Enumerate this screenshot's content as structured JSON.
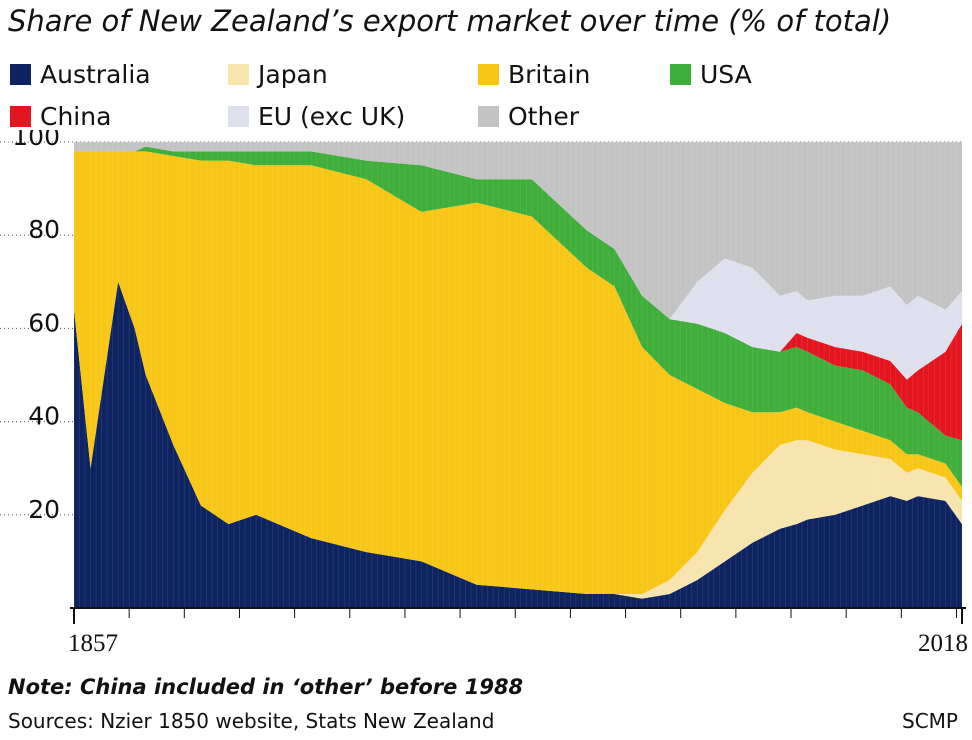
{
  "title": "Share of New Zealand’s export market over time (% of total)",
  "legend": [
    {
      "label": "Australia",
      "color": "#0d2461"
    },
    {
      "label": "Japan",
      "color": "#f7e4ae"
    },
    {
      "label": "Britain",
      "color": "#f8c616"
    },
    {
      "label": "USA",
      "color": "#3fae3a"
    },
    {
      "label": "China",
      "color": "#e3151f"
    },
    {
      "label": "EU (exc UK)",
      "color": "#dfe0ee"
    },
    {
      "label": "Other",
      "color": "#c3c3c3"
    }
  ],
  "note": "Note: China included in ‘other’ before 1988",
  "source": "Sources: Nzier 1850 website, Stats New Zealand",
  "credit": "SCMP",
  "chart_data": {
    "type": "area",
    "title": "Share of New Zealand’s export market over time (% of total)",
    "xlabel": "",
    "ylabel": "",
    "xlim": [
      1857,
      2018
    ],
    "ylim": [
      0,
      100
    ],
    "x_tick_labels": [
      "1857",
      "2018"
    ],
    "y_ticks": [
      20,
      40,
      60,
      80,
      100
    ],
    "stack_order": [
      "Australia",
      "Japan",
      "Britain",
      "USA",
      "China",
      "EU (exc UK)",
      "Other"
    ],
    "x": [
      1857,
      1860,
      1865,
      1868,
      1870,
      1875,
      1880,
      1885,
      1890,
      1900,
      1910,
      1920,
      1930,
      1940,
      1950,
      1955,
      1960,
      1965,
      1970,
      1975,
      1980,
      1985,
      1988,
      1990,
      1995,
      2000,
      2005,
      2008,
      2010,
      2015,
      2018
    ],
    "series": [
      {
        "name": "Australia",
        "values": [
          64,
          30,
          70,
          60,
          50,
          35,
          22,
          18,
          20,
          15,
          12,
          10,
          5,
          4,
          3,
          3,
          2,
          3,
          6,
          10,
          14,
          17,
          18,
          19,
          20,
          22,
          24,
          23,
          24,
          23,
          18
        ]
      },
      {
        "name": "Japan",
        "values": [
          0,
          0,
          0,
          0,
          0,
          0,
          0,
          0,
          0,
          0,
          0,
          0,
          0,
          0,
          0,
          0,
          1,
          3,
          6,
          11,
          15,
          18,
          18,
          17,
          14,
          11,
          8,
          6,
          6,
          5,
          5
        ]
      },
      {
        "name": "Britain",
        "values": [
          34,
          68,
          28,
          38,
          48,
          62,
          74,
          78,
          75,
          80,
          80,
          75,
          82,
          80,
          70,
          66,
          53,
          44,
          35,
          23,
          13,
          7,
          7,
          6,
          6,
          5,
          4,
          4,
          3,
          3,
          3
        ]
      },
      {
        "name": "USA",
        "values": [
          0,
          0,
          0,
          0,
          1,
          1,
          2,
          2,
          3,
          3,
          4,
          10,
          5,
          8,
          8,
          8,
          11,
          12,
          14,
          15,
          14,
          13,
          13,
          13,
          12,
          13,
          12,
          10,
          9,
          6,
          10
        ]
      },
      {
        "name": "China",
        "values": [
          0,
          0,
          0,
          0,
          0,
          0,
          0,
          0,
          0,
          0,
          0,
          0,
          0,
          0,
          0,
          0,
          0,
          0,
          0,
          0,
          0,
          0,
          3,
          3,
          4,
          4,
          5,
          6,
          9,
          18,
          25
        ]
      },
      {
        "name": "EU (exc UK)",
        "values": [
          0,
          0,
          0,
          0,
          0,
          0,
          0,
          0,
          0,
          0,
          0,
          0,
          0,
          0,
          0,
          0,
          0,
          0,
          9,
          16,
          17,
          12,
          9,
          8,
          11,
          12,
          16,
          16,
          16,
          9,
          7
        ]
      },
      {
        "name": "Other",
        "values": [
          2,
          2,
          2,
          2,
          1,
          2,
          2,
          2,
          2,
          2,
          4,
          5,
          8,
          8,
          19,
          23,
          33,
          38,
          30,
          25,
          27,
          33,
          32,
          34,
          33,
          33,
          31,
          35,
          33,
          36,
          32
        ]
      }
    ]
  }
}
